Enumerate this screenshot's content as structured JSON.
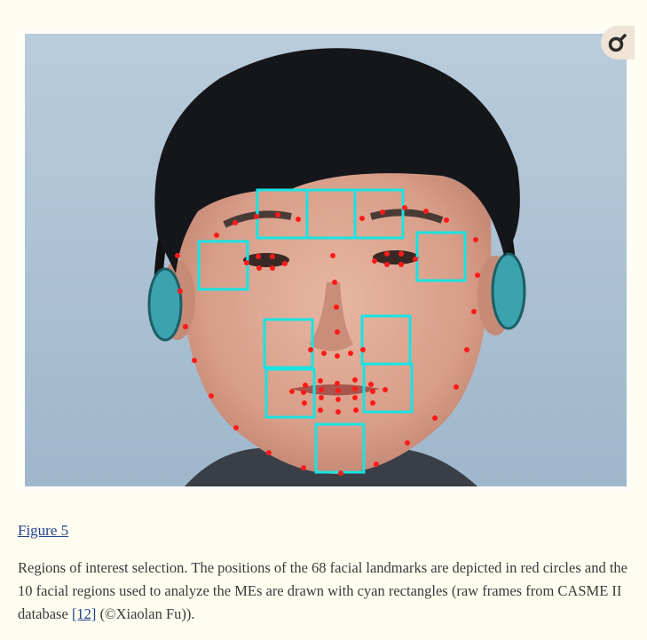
{
  "figure": {
    "label": "Figure 5",
    "caption": {
      "text_before": "Regions of interest selection. The positions of the 68 facial landmarks are depicted in red circles and the 10 facial regions used to analyze the MEs are drawn with cyan rectangles (raw frames from CASME II database ",
      "ref_link": "[12]",
      "text_after": " (©Xiaolan Fu))."
    },
    "zoom_icon": "zoom-magnifier-icon",
    "colors": {
      "landmark": "#ff1a1a",
      "region": "#19e3e3",
      "background": "#fffdf0",
      "link": "#1f3f8f"
    }
  }
}
